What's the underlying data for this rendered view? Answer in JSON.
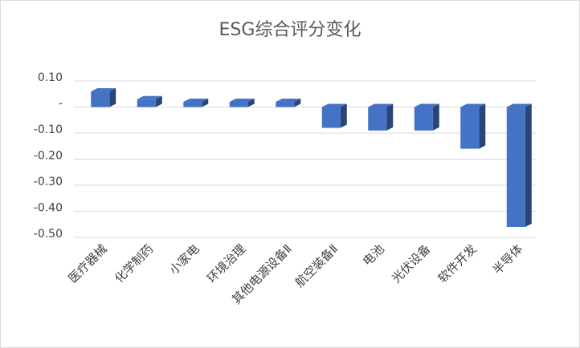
{
  "chart_data": {
    "type": "bar",
    "title": "ESG综合评分变化",
    "categories": [
      "医疗器械",
      "化学制药",
      "小家电",
      "环境治理",
      "其他电源设备Ⅱ",
      "航空装备Ⅱ",
      "电池",
      "光伏设备",
      "软件开发",
      "半导体"
    ],
    "values": [
      0.06,
      0.03,
      0.02,
      0.02,
      0.02,
      -0.08,
      -0.09,
      -0.09,
      -0.16,
      -0.46
    ],
    "color": "#4472c4",
    "ylim": [
      -0.5,
      0.1
    ],
    "yticks": [
      {
        "value": 0.1,
        "label": "0.10"
      },
      {
        "value": 0,
        "label": "-"
      },
      {
        "value": -0.1,
        "label": "-0.10"
      },
      {
        "value": -0.2,
        "label": "-0.20"
      },
      {
        "value": -0.3,
        "label": "-0.30"
      },
      {
        "value": -0.4,
        "label": "-0.40"
      },
      {
        "value": -0.5,
        "label": "-0.50"
      }
    ],
    "grid": true
  }
}
